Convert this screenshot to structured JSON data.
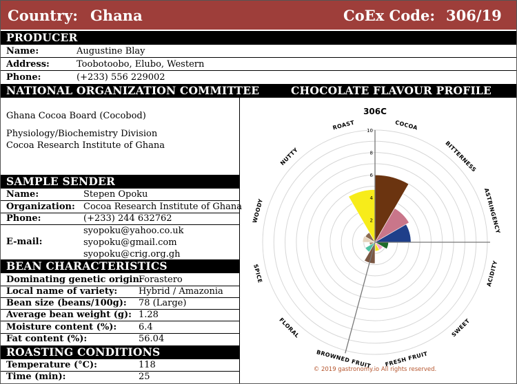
{
  "header": {
    "country_label": "Country:",
    "country_value": "Ghana",
    "code_label": "CoEx Code:",
    "code_value": "306/19"
  },
  "producer": {
    "title": "PRODUCER",
    "rows": [
      {
        "label": "Name:",
        "value": "Augustine Blay"
      },
      {
        "label": "Address:",
        "value": "Toobotoobo, Elubo, Western"
      },
      {
        "label": "Phone:",
        "value": "(+233) 556 229002"
      }
    ]
  },
  "noc": {
    "title": "NATIONAL ORGANIZATION COMMITTEE",
    "line1": "Ghana Cocoa Board (Cocobod)",
    "line2": "Physiology/Biochemistry Division",
    "line3": "Cocoa Research Institute of Ghana"
  },
  "sender": {
    "title": "SAMPLE SENDER",
    "rows": [
      {
        "label": "Name:",
        "value": "Stepen Opoku"
      },
      {
        "label": "Organization:",
        "value": "Cocoa Research Institute of Ghana"
      },
      {
        "label": "Phone:",
        "value": "(+233) 244 632762"
      }
    ],
    "email_label": "E-mail:",
    "emails": [
      "syopoku@yahoo.co.uk",
      "syopoku@gmail.com",
      "syopoku@crig.org.gh"
    ]
  },
  "bean": {
    "title": "BEAN CHARACTERISTICS",
    "rows": [
      {
        "label": "Dominating genetic origin:",
        "value": "Forastero"
      },
      {
        "label": "Local name of variety:",
        "value": "Hybrid / Amazonia"
      },
      {
        "label": "Bean size (beans/100g):",
        "value": "78 (Large)"
      },
      {
        "label": "Average bean weight (g):",
        "value": "1.28"
      },
      {
        "label": "Moisture content (%):",
        "value": "6.4"
      },
      {
        "label": "Fat content (%):",
        "value": "56.04"
      }
    ]
  },
  "roasting": {
    "title": "ROASTING CONDITIONS",
    "rows": [
      {
        "label": "Temperature (°C):",
        "value": "118"
      },
      {
        "label": "Time (min):",
        "value": "25"
      }
    ]
  },
  "chart_panel": {
    "title": "CHOCOLATE FLAVOUR PROFILE"
  },
  "chart_data": {
    "type": "polar-area",
    "title": "306C",
    "rlim": [
      0,
      10
    ],
    "rticks": [
      "2",
      "4",
      "6",
      "8",
      "10"
    ],
    "copyright": "© 2019 gastronomy.io All rights reserved.",
    "categories": [
      {
        "name": "COCOA",
        "value": 6.0,
        "color": "#6b3410"
      },
      {
        "name": "BITTERNESS",
        "value": 3.5,
        "color": "#c9768a"
      },
      {
        "name": "ASTRINGENCY",
        "value": 3.2,
        "color": "#1f3f8a"
      },
      {
        "name": "ACIDITY",
        "value": 1.2,
        "color": "#1f6b2a"
      },
      {
        "name": "SWEET",
        "value": 0.8,
        "color": "#f2a3c9"
      },
      {
        "name": "FRESH FRUIT",
        "value": 0.8,
        "color": "#f4e81e"
      },
      {
        "name": "BROWNED FRUIT",
        "value": 1.9,
        "color": "#7a5642"
      },
      {
        "name": "FLORAL",
        "value": 1.0,
        "color": "#4fc3a3"
      },
      {
        "name": "SPICE",
        "value": 0.5,
        "color": "#a9846a"
      },
      {
        "name": "WOODY",
        "value": 1.1,
        "color": "#e6d4bd"
      },
      {
        "name": "NUTTY",
        "value": 1.0,
        "color": "#8b6a50"
      },
      {
        "name": "ROAST",
        "value": 4.7,
        "color": "#f7ec1a"
      }
    ]
  }
}
